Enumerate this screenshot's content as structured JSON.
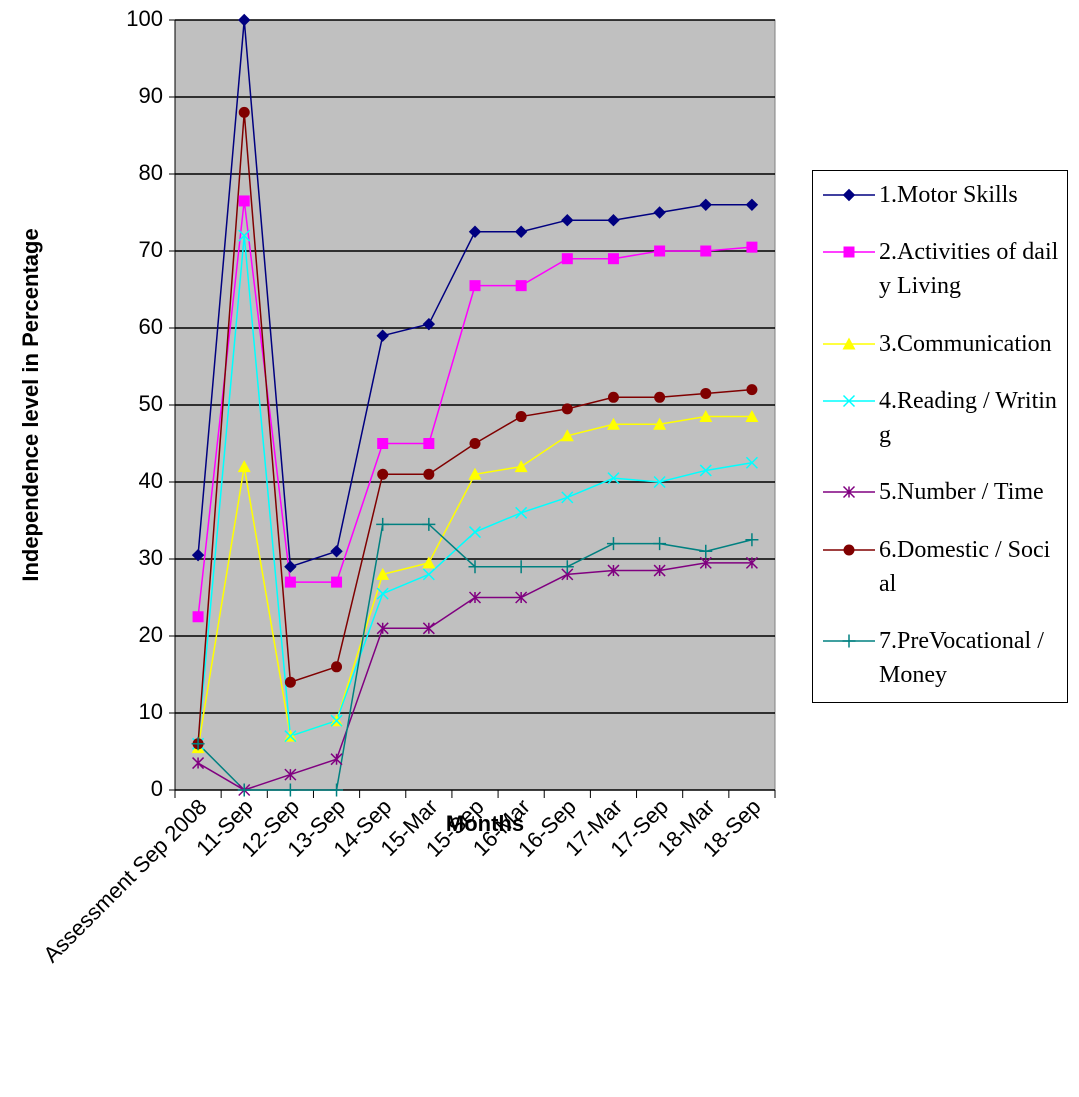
{
  "chart_data": {
    "type": "line",
    "ylabel": "Independence level in Percentage",
    "xlabel": "Months",
    "categories": [
      "Assessment Sep 2008",
      "11-Sep",
      "12-Sep",
      "13-Sep",
      "14-Sep",
      "15-Mar",
      "15-Sep",
      "16-Mar",
      "16-Sep",
      "17-Mar",
      "17-Sep",
      "18-Mar",
      "18-Sep"
    ],
    "ylim": [
      0,
      100
    ],
    "yticks": [
      0,
      10,
      20,
      30,
      40,
      50,
      60,
      70,
      80,
      90,
      100
    ],
    "grid": true,
    "legend": "right",
    "series": [
      {
        "name": "1.Motor Skills",
        "color": "#000080",
        "marker": "diamond",
        "values": [
          30.5,
          100,
          29,
          31,
          59,
          60.5,
          72.5,
          72.5,
          74,
          74,
          75,
          76,
          76
        ]
      },
      {
        "name": "2.Activities of daily Living",
        "color": "#ff00ff",
        "marker": "square",
        "values": [
          22.5,
          76.5,
          27,
          27,
          45,
          45,
          65.5,
          65.5,
          69,
          69,
          70,
          70,
          70.5
        ]
      },
      {
        "name": "3.Communication",
        "color": "#ffff00",
        "marker": "triangle",
        "values": [
          5.5,
          42,
          7,
          9,
          28,
          29.5,
          41,
          42,
          46,
          47.5,
          47.5,
          48.5,
          48.5
        ]
      },
      {
        "name": "4.Reading / Writing",
        "color": "#00ffff",
        "marker": "x",
        "values": [
          6,
          72,
          7,
          9,
          25.5,
          28,
          33.5,
          36,
          38,
          40.5,
          40,
          41.5,
          42.5
        ]
      },
      {
        "name": "5.Number / Time",
        "color": "#800080",
        "marker": "star",
        "values": [
          3.5,
          0,
          2,
          4,
          21,
          21,
          25,
          25,
          28,
          28.5,
          28.5,
          29.5,
          29.5
        ]
      },
      {
        "name": "6.Domestic / Social",
        "color": "#800000",
        "marker": "circle",
        "values": [
          6,
          88,
          14,
          16,
          41,
          41,
          45,
          48.5,
          49.5,
          51,
          51,
          51.5,
          52
        ]
      },
      {
        "name": "7.PreVocational / Money",
        "color": "#008080",
        "marker": "plus",
        "values": [
          6,
          0,
          0,
          0,
          34.5,
          34.5,
          29,
          29,
          29,
          32,
          32,
          31,
          32.5
        ]
      }
    ]
  }
}
